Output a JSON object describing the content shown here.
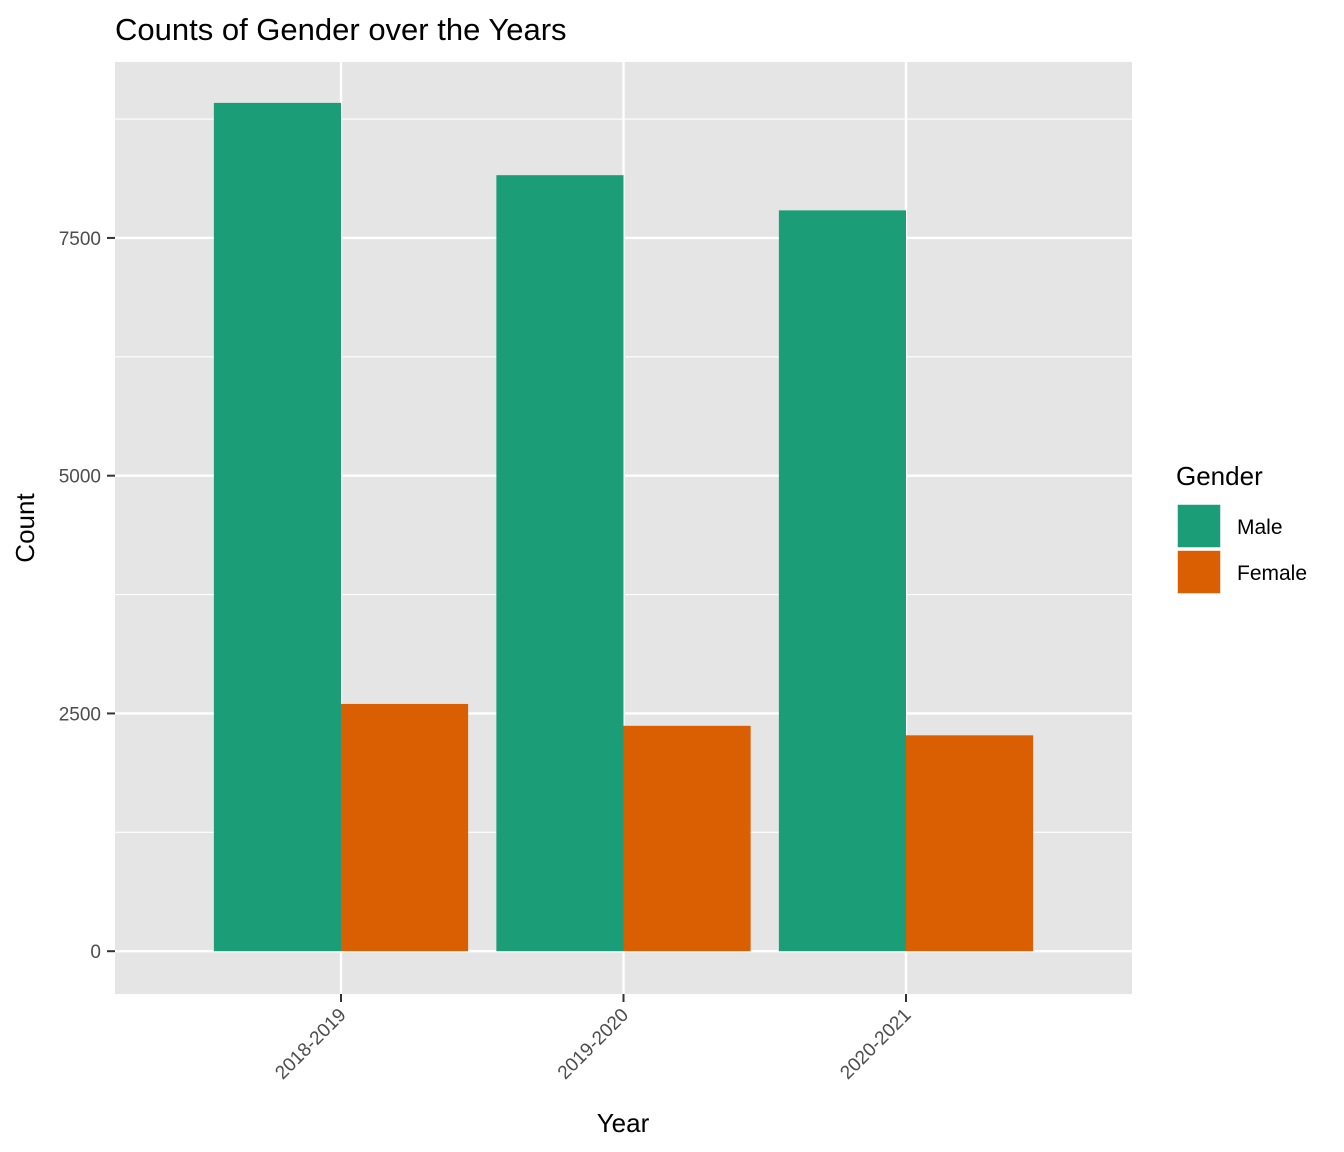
{
  "chart_data": {
    "type": "bar",
    "title": "Counts of Gender over the Years",
    "xlabel": "Year",
    "ylabel": "Count",
    "categories": [
      "2018-2019",
      "2019-2020",
      "2020-2021"
    ],
    "series": [
      {
        "name": "Male",
        "color": "#1B9E77",
        "values": [
          8920,
          8160,
          7790
        ]
      },
      {
        "name": "Female",
        "color": "#D95F02",
        "values": [
          2600,
          2370,
          2270
        ]
      }
    ],
    "ylim": [
      -450,
      9350
    ],
    "yticks": [
      0,
      2500,
      5000,
      7500
    ],
    "y_minor_gridlines": [
      1250,
      3750,
      6250,
      8750
    ],
    "grid": true,
    "legend": {
      "title": "Gender",
      "position": "right"
    },
    "panel_background": "#E5E5E5",
    "gridline_color": "#FFFFFF"
  }
}
